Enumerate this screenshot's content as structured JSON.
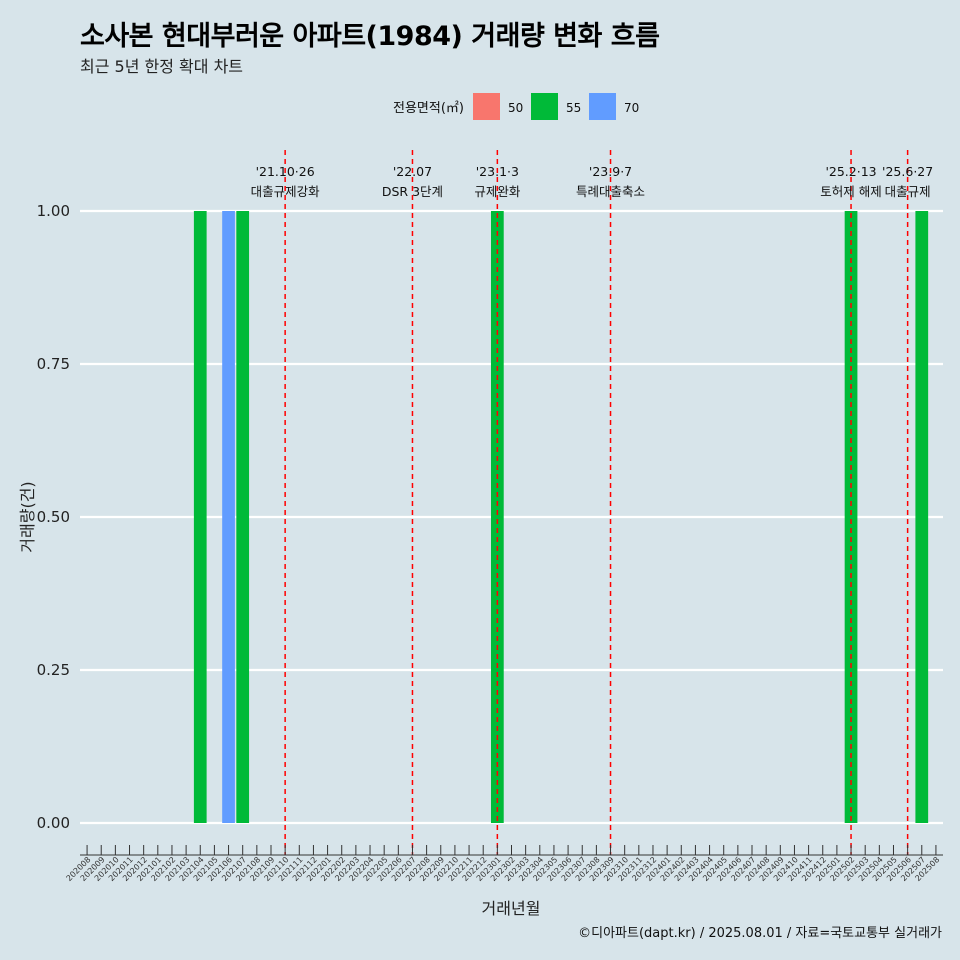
{
  "title": "소사본 현대부러운 아파트(1984) 거래량 변화 흐름",
  "subtitle": "최근 5년 한정 확대 차트",
  "caption": "©디아파트(dapt.kr) / 2025.08.01 / 자료=국토교통부 실거래가",
  "chart_data": {
    "type": "bar",
    "xlabel": "거래년월",
    "ylabel": "거래량(건)",
    "ylim": [
      -0.045,
      1.1
    ],
    "yticks": [
      0,
      0.25,
      0.5,
      0.75,
      1
    ],
    "ytick_labels": [
      "0.00",
      "0.25",
      "0.50",
      "0.75",
      "1.00"
    ],
    "grid": true,
    "legend": {
      "title": "전용면적(㎡)",
      "position": "top",
      "entries": [
        {
          "name": "50",
          "color": "#f8766d"
        },
        {
          "name": "55",
          "color": "#00ba38"
        },
        {
          "name": "70",
          "color": "#619cff"
        }
      ]
    },
    "categories": [
      "202008",
      "202009",
      "202010",
      "202011",
      "202012",
      "202101",
      "202102",
      "202103",
      "202104",
      "202105",
      "202106",
      "202107",
      "202108",
      "202109",
      "202110",
      "202111",
      "202112",
      "202201",
      "202202",
      "202203",
      "202204",
      "202205",
      "202206",
      "202207",
      "202208",
      "202209",
      "202210",
      "202211",
      "202212",
      "202301",
      "202302",
      "202303",
      "202304",
      "202305",
      "202306",
      "202307",
      "202308",
      "202309",
      "202310",
      "202311",
      "202312",
      "202401",
      "202402",
      "202403",
      "202404",
      "202405",
      "202406",
      "202407",
      "202408",
      "202409",
      "202410",
      "202411",
      "202412",
      "202501",
      "202502",
      "202503",
      "202504",
      "202505",
      "202506",
      "202507",
      "202508"
    ],
    "bars": [
      {
        "x": "202104",
        "area": "55",
        "value": 1
      },
      {
        "x": "202106",
        "area": "70",
        "value": 1
      },
      {
        "x": "202107",
        "area": "55",
        "value": 1
      },
      {
        "x": "202301",
        "area": "55",
        "value": 1
      },
      {
        "x": "202502",
        "area": "55",
        "value": 1
      },
      {
        "x": "202507",
        "area": "55",
        "value": 1
      }
    ],
    "events": [
      {
        "x": "202110",
        "date": "'21.10·26",
        "label": "대출규제강화"
      },
      {
        "x": "202207",
        "date": "'22.07",
        "label": "DSR 3단계"
      },
      {
        "x": "202301",
        "date": "'23.1·3",
        "label": "규제완화"
      },
      {
        "x": "202309",
        "date": "'23.9·7",
        "label": "특례대출축소"
      },
      {
        "x": "202502",
        "date": "'25.2·13",
        "label": "토허제 해제"
      },
      {
        "x": "202506",
        "date": "'25.6·27",
        "label": "대출규제"
      }
    ]
  }
}
